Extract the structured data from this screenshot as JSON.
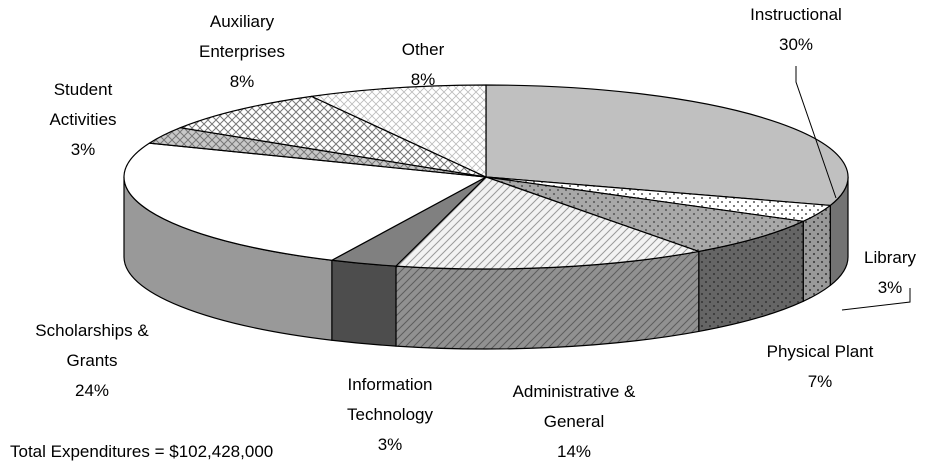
{
  "chart_data": {
    "type": "pie3d",
    "categories": [
      "Instructional",
      "Library",
      "Physical Plant",
      "Administrative & General",
      "Information Technology",
      "Scholarships & Grants",
      "Student Activities",
      "Auxiliary Enterprises",
      "Other"
    ],
    "values": [
      30,
      3,
      7,
      14,
      3,
      24,
      3,
      8,
      8
    ],
    "value_labels": [
      "30%",
      "3%",
      "7%",
      "14%",
      "3%",
      "24%",
      "3%",
      "8%",
      "8%"
    ],
    "colors": [
      "#c0c0c0",
      "#ffffff",
      "#a8a8a8",
      "#f2f2f2",
      "#808080",
      "#ffffff",
      "#c8c8c8",
      "#ffffff",
      "#ffffff"
    ],
    "annotation": "Total Expenditures = $102,428,000"
  }
}
